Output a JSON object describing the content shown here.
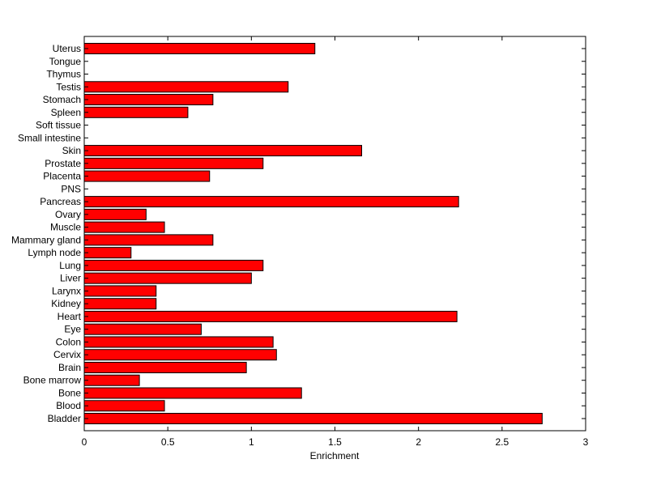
{
  "chart_data": {
    "type": "bar",
    "orientation": "horizontal",
    "title": "",
    "xlabel": "Enrichment",
    "ylabel": "",
    "xlim": [
      0,
      3
    ],
    "xticks": [
      "0",
      "0.5",
      "1",
      "1.5",
      "2",
      "2.5",
      "3"
    ],
    "grid": false,
    "bar_color": "#ff0000",
    "bar_edge_color": "#000000",
    "categories": [
      "Bladder",
      "Blood",
      "Bone",
      "Bone marrow",
      "Brain",
      "Cervix",
      "Colon",
      "Eye",
      "Heart",
      "Kidney",
      "Larynx",
      "Liver",
      "Lung",
      "Lymph node",
      "Mammary gland",
      "Muscle",
      "Ovary",
      "Pancreas",
      "PNS",
      "Placenta",
      "Prostate",
      "Skin",
      "Small intestine",
      "Soft tissue",
      "Spleen",
      "Stomach",
      "Testis",
      "Thymus",
      "Tongue",
      "Uterus"
    ],
    "values": [
      2.74,
      0.48,
      1.3,
      0.33,
      0.97,
      1.15,
      1.13,
      0.7,
      2.23,
      0.43,
      0.43,
      1.0,
      1.07,
      0.28,
      0.77,
      0.48,
      0.37,
      2.24,
      0,
      0.75,
      1.07,
      1.66,
      0,
      0,
      0.62,
      0.77,
      1.22,
      0,
      0,
      1.38
    ]
  }
}
